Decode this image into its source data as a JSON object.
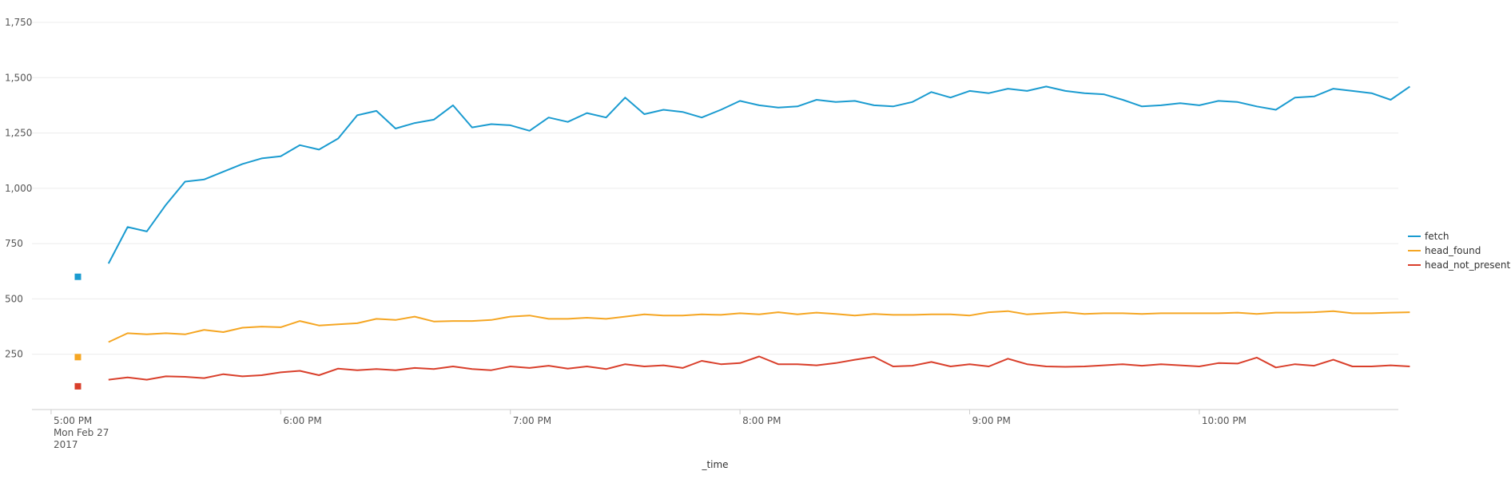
{
  "chart_data": {
    "type": "line",
    "title": "",
    "xlabel": "_time",
    "ylabel": "",
    "ylim": [
      0,
      1750
    ],
    "y_ticks": [
      250,
      500,
      750,
      1000,
      1250,
      1500,
      1750
    ],
    "y_tick_labels": [
      "250",
      "500",
      "750",
      "1,000",
      "1,250",
      "1,500",
      "1,750"
    ],
    "x_range": [
      "16:55",
      "22:52"
    ],
    "x_ticks": [
      {
        "time": "17:00",
        "label": "5:00 PM",
        "sublabels": [
          "Mon Feb 27",
          "2017"
        ]
      },
      {
        "time": "18:00",
        "label": "6:00 PM",
        "sublabels": []
      },
      {
        "time": "19:00",
        "label": "7:00 PM",
        "sublabels": []
      },
      {
        "time": "20:00",
        "label": "8:00 PM",
        "sublabels": []
      },
      {
        "time": "21:00",
        "label": "9:00 PM",
        "sublabels": []
      },
      {
        "time": "22:00",
        "label": "10:00 PM",
        "sublabels": []
      }
    ],
    "grid": true,
    "legend_position": "right",
    "x_start": "17:15",
    "x_interval_minutes": 5,
    "series": [
      {
        "name": "fetch",
        "color": "#1a9bd0",
        "first_value": 600,
        "values": [
          660,
          825,
          805,
          925,
          1030,
          1040,
          1075,
          1110,
          1135,
          1145,
          1195,
          1175,
          1225,
          1330,
          1350,
          1270,
          1295,
          1310,
          1375,
          1275,
          1290,
          1285,
          1260,
          1320,
          1300,
          1340,
          1320,
          1410,
          1335,
          1355,
          1345,
          1320,
          1355,
          1395,
          1375,
          1365,
          1370,
          1400,
          1390,
          1395,
          1375,
          1370,
          1390,
          1435,
          1410,
          1440,
          1430,
          1450,
          1440,
          1460,
          1440,
          1430,
          1425,
          1400,
          1370,
          1375,
          1385,
          1375,
          1395,
          1390,
          1370,
          1355,
          1410,
          1415,
          1450,
          1440,
          1430,
          1400,
          1460
        ]
      },
      {
        "name": "head_found",
        "color": "#f5a623",
        "first_value": 237,
        "values": [
          305,
          345,
          340,
          345,
          340,
          360,
          350,
          370,
          375,
          372,
          400,
          380,
          385,
          390,
          410,
          405,
          420,
          398,
          400,
          400,
          405,
          420,
          425,
          410,
          410,
          415,
          410,
          420,
          430,
          425,
          425,
          430,
          428,
          435,
          430,
          440,
          430,
          438,
          432,
          425,
          432,
          428,
          428,
          430,
          430,
          425,
          440,
          445,
          430,
          435,
          440,
          432,
          435,
          435,
          432,
          435,
          435,
          435,
          435,
          438,
          432,
          438,
          438,
          440,
          445,
          435,
          435,
          438,
          440
        ]
      },
      {
        "name": "head_not_present",
        "color": "#d93f2b",
        "first_value": 105,
        "values": [
          135,
          145,
          135,
          150,
          148,
          142,
          160,
          150,
          155,
          168,
          175,
          155,
          185,
          178,
          183,
          178,
          188,
          183,
          195,
          183,
          178,
          195,
          188,
          198,
          185,
          195,
          183,
          205,
          195,
          200,
          188,
          220,
          205,
          210,
          240,
          205,
          205,
          200,
          210,
          225,
          238,
          195,
          198,
          215,
          195,
          205,
          195,
          230,
          205,
          195,
          193,
          195,
          200,
          205,
          198,
          205,
          200,
          195,
          210,
          208,
          235,
          190,
          205,
          198,
          225,
          195,
          195,
          200,
          195
        ]
      }
    ]
  }
}
